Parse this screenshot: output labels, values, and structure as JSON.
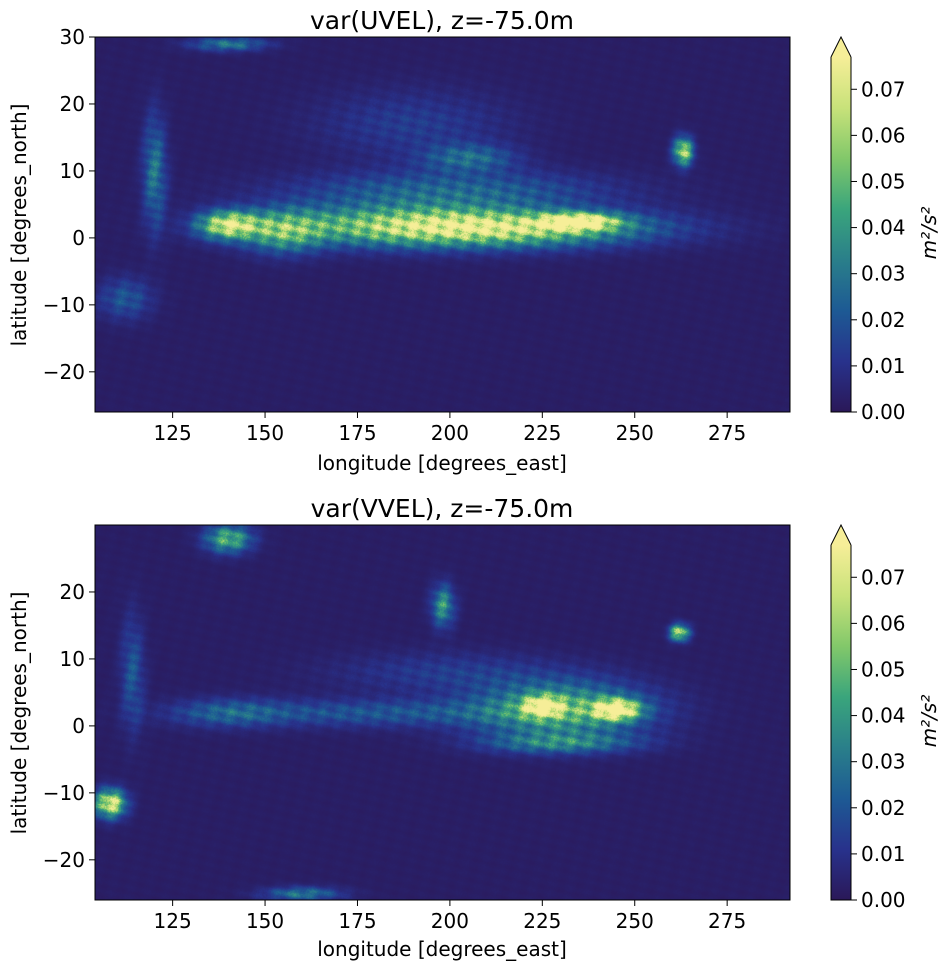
{
  "colors": {
    "colormap": [
      "#2a1858",
      "#28328c",
      "#1d5a94",
      "#2a7f8a",
      "#3aa57c",
      "#82c86a",
      "#c8e27a",
      "#f6ee98"
    ],
    "background_value": "#2a1858"
  },
  "chart_data": [
    {
      "type": "heatmap",
      "title": "var(UVEL), z=-75.0m",
      "xlabel": "longitude [degrees_east]",
      "ylabel": "latitude [degrees_north]",
      "xlim": [
        104,
        292
      ],
      "ylim": [
        -26,
        30
      ],
      "xticks": [
        125,
        150,
        175,
        200,
        225,
        250,
        275
      ],
      "yticks": [
        -20,
        -10,
        0,
        10,
        20,
        30
      ],
      "colorbar": {
        "label": "m²/s²",
        "range": [
          0,
          0.077
        ],
        "ticks": [
          "0.00",
          "0.01",
          "0.02",
          "0.03",
          "0.04",
          "0.05",
          "0.06",
          "0.07"
        ],
        "extend": "max"
      },
      "features": [
        {
          "lon": 215,
          "lat": 1.5,
          "sx": 38,
          "sy": 2.6,
          "amp": 0.06
        },
        {
          "lon": 235,
          "lat": 2.5,
          "sx": 10,
          "sy": 1.2,
          "amp": 0.07
        },
        {
          "lon": 185,
          "lat": 2,
          "sx": 35,
          "sy": 3,
          "amp": 0.04
        },
        {
          "lon": 140,
          "lat": 2,
          "sx": 8,
          "sy": 2,
          "amp": 0.07
        },
        {
          "lon": 155,
          "lat": 1,
          "sx": 10,
          "sy": 3,
          "amp": 0.04
        },
        {
          "lon": 200,
          "lat": 7,
          "sx": 40,
          "sy": 3,
          "amp": 0.025
        },
        {
          "lon": 263,
          "lat": 13,
          "sx": 2.5,
          "sy": 2,
          "amp": 0.07
        },
        {
          "lon": 112,
          "lat": -9,
          "sx": 7,
          "sy": 3,
          "amp": 0.02
        },
        {
          "lon": 120,
          "lat": 10,
          "sx": 3,
          "sy": 8,
          "amp": 0.03
        },
        {
          "lon": 190,
          "lat": 17,
          "sx": 25,
          "sy": 5,
          "amp": 0.012
        },
        {
          "lon": 205,
          "lat": 12,
          "sx": 12,
          "sy": 2,
          "amp": 0.025
        },
        {
          "lon": 140,
          "lat": 29,
          "sx": 10,
          "sy": 1,
          "amp": 0.03
        }
      ]
    },
    {
      "type": "heatmap",
      "title": "var(VVEL), z=-75.0m",
      "xlabel": "longitude [degrees_east]",
      "ylabel": "latitude [degrees_north]",
      "xlim": [
        104,
        292
      ],
      "ylim": [
        -26,
        30
      ],
      "xticks": [
        125,
        150,
        175,
        200,
        225,
        250,
        275
      ],
      "yticks": [
        -20,
        -10,
        0,
        10,
        20
      ],
      "colorbar": {
        "label": "m²/s²",
        "range": [
          0,
          0.077
        ],
        "ticks": [
          "0.00",
          "0.01",
          "0.02",
          "0.03",
          "0.04",
          "0.05",
          "0.06",
          "0.07"
        ],
        "extend": "max"
      },
      "features": [
        {
          "lon": 230,
          "lat": 2.5,
          "sx": 22,
          "sy": 4,
          "amp": 0.05
        },
        {
          "lon": 245,
          "lat": 2.5,
          "sx": 6,
          "sy": 1.5,
          "amp": 0.08
        },
        {
          "lon": 225,
          "lat": 3,
          "sx": 5,
          "sy": 1.5,
          "amp": 0.06
        },
        {
          "lon": 230,
          "lat": -2.5,
          "sx": 20,
          "sy": 1.5,
          "amp": 0.03
        },
        {
          "lon": 180,
          "lat": 2,
          "sx": 40,
          "sy": 2,
          "amp": 0.02
        },
        {
          "lon": 140,
          "lat": 2,
          "sx": 15,
          "sy": 2,
          "amp": 0.02
        },
        {
          "lon": 108,
          "lat": -11.5,
          "sx": 4,
          "sy": 2,
          "amp": 0.08
        },
        {
          "lon": 198,
          "lat": 18,
          "sx": 3,
          "sy": 3,
          "amp": 0.04
        },
        {
          "lon": 262,
          "lat": 14,
          "sx": 2.5,
          "sy": 1.2,
          "amp": 0.07
        },
        {
          "lon": 140,
          "lat": 28,
          "sx": 6,
          "sy": 2,
          "amp": 0.05
        },
        {
          "lon": 114,
          "lat": 8,
          "sx": 3,
          "sy": 8,
          "amp": 0.02
        },
        {
          "lon": 160,
          "lat": -25,
          "sx": 10,
          "sy": 1,
          "amp": 0.03
        },
        {
          "lon": 200,
          "lat": 8,
          "sx": 30,
          "sy": 3,
          "amp": 0.012
        }
      ]
    }
  ]
}
